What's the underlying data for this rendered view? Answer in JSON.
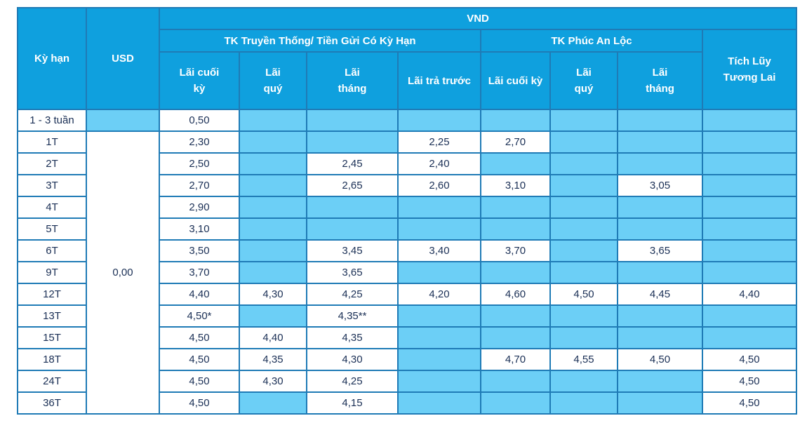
{
  "header": {
    "term": "Kỳ hạn",
    "usd": "USD",
    "vnd": "VND",
    "group_traditional": "TK Truyền Thống/ Tiền Gửi Có Kỳ Hạn",
    "group_phuc_an_loc": "TK Phúc An Lộc",
    "tich_luy": "Tích Lũy Tương Lai",
    "cols": {
      "lai_cuoi_ky": "Lãi cuối kỳ",
      "lai_quy": "Lãi quý",
      "lai_thang": "Lãi tháng",
      "lai_tra_truoc": "Lãi trả trước",
      "pal_lai_cuoi_ky": "Lãi cuối kỳ",
      "pal_lai_quy": "Lãi quý",
      "pal_lai_thang": "Lãi tháng"
    }
  },
  "usd_shared_value": "0,00",
  "rows": [
    {
      "term": "1 - 3 tuần",
      "usd": "",
      "c1": "0,50",
      "c2": "",
      "c3": "",
      "c4": "",
      "c5": "",
      "c6": "",
      "c7": "",
      "c8": ""
    },
    {
      "term": "1T",
      "c1": "2,30",
      "c2": "",
      "c3": "",
      "c4": "2,25",
      "c5": "2,70",
      "c6": "",
      "c7": "",
      "c8": ""
    },
    {
      "term": "2T",
      "c1": "2,50",
      "c2": "",
      "c3": "2,45",
      "c4": "2,40",
      "c5": "",
      "c6": "",
      "c7": "",
      "c8": ""
    },
    {
      "term": "3T",
      "c1": "2,70",
      "c2": "",
      "c3": "2,65",
      "c4": "2,60",
      "c5": "3,10",
      "c6": "",
      "c7": "3,05",
      "c8": ""
    },
    {
      "term": "4T",
      "c1": "2,90",
      "c2": "",
      "c3": "",
      "c4": "",
      "c5": "",
      "c6": "",
      "c7": "",
      "c8": ""
    },
    {
      "term": "5T",
      "c1": "3,10",
      "c2": "",
      "c3": "",
      "c4": "",
      "c5": "",
      "c6": "",
      "c7": "",
      "c8": ""
    },
    {
      "term": "6T",
      "c1": "3,50",
      "c2": "",
      "c3": "3,45",
      "c4": "3,40",
      "c5": "3,70",
      "c6": "",
      "c7": "3,65",
      "c8": ""
    },
    {
      "term": "9T",
      "c1": "3,70",
      "c2": "",
      "c3": "3,65",
      "c4": "",
      "c5": "",
      "c6": "",
      "c7": "",
      "c8": ""
    },
    {
      "term": "12T",
      "c1": "4,40",
      "c2": "4,30",
      "c3": "4,25",
      "c4": "4,20",
      "c5": "4,60",
      "c6": "4,50",
      "c7": "4,45",
      "c8": "4,40"
    },
    {
      "term": "13T",
      "c1": "4,50*",
      "c2": "",
      "c3": "4,35**",
      "c4": "",
      "c5": "",
      "c6": "",
      "c7": "",
      "c8": ""
    },
    {
      "term": "15T",
      "c1": "4,50",
      "c2": "4,40",
      "c3": "4,35",
      "c4": "",
      "c5": "",
      "c6": "",
      "c7": "",
      "c8": ""
    },
    {
      "term": "18T",
      "c1": "4,50",
      "c2": "4,35",
      "c3": "4,30",
      "c4": "",
      "c5": "4,70",
      "c6": "4,55",
      "c7": "4,50",
      "c8": "4,50"
    },
    {
      "term": "24T",
      "c1": "4,50",
      "c2": "4,30",
      "c3": "4,25",
      "c4": "",
      "c5": "",
      "c6": "",
      "c7": "",
      "c8": "4,50"
    },
    {
      "term": "36T",
      "c1": "4,50",
      "c2": "",
      "c3": "4,15",
      "c4": "",
      "c5": "",
      "c6": "",
      "c7": "",
      "c8": "4,50"
    }
  ],
  "colors": {
    "header_bg": "#0fa0de",
    "empty_cell": "#6ccff6",
    "border": "#1f7bb6",
    "text": "#1a2f55"
  }
}
